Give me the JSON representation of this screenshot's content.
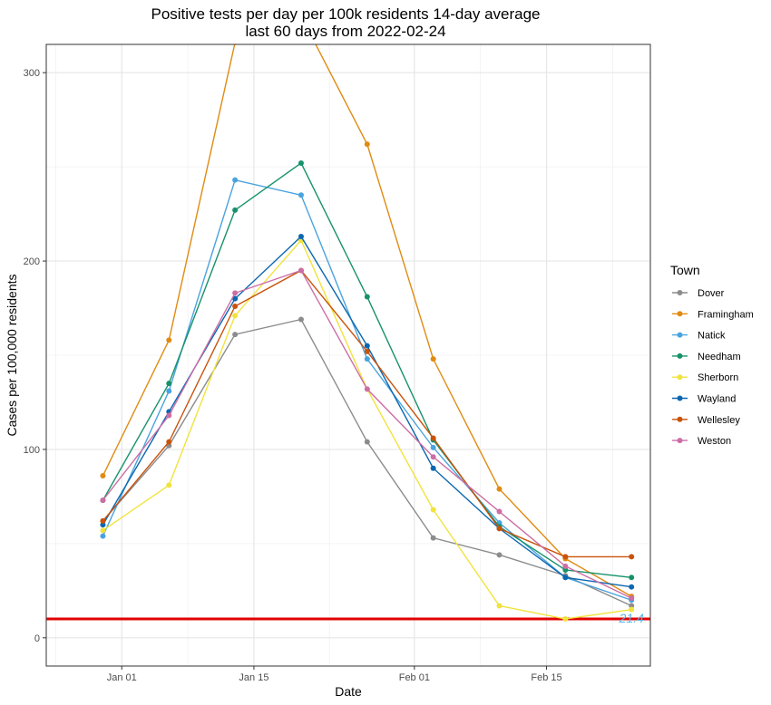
{
  "chart_data": {
    "type": "line",
    "title": "Positive tests per day per 100k residents 14-day average",
    "subtitle": "last 60 days from 2022-02-24",
    "xlabel": "Date",
    "ylabel": "Cases per 100,000 residents",
    "legend_title": "Town",
    "legend_position": "right",
    "grid": true,
    "x_tick_labels": [
      "Jan 01",
      "Jan 15",
      "Feb 01",
      "Feb 15"
    ],
    "x_tick_dates": [
      "2022-01-01",
      "2022-01-15",
      "2022-02-01",
      "2022-02-15"
    ],
    "x_range": [
      "2021-12-24",
      "2022-02-26"
    ],
    "y_ticks": [
      0,
      100,
      200,
      300
    ],
    "ylim": [
      -15,
      315
    ],
    "x": [
      "2021-12-30",
      "2022-01-06",
      "2022-01-13",
      "2022-01-20",
      "2022-01-27",
      "2022-02-03",
      "2022-02-10",
      "2022-02-17",
      "2022-02-24"
    ],
    "series": [
      {
        "name": "Dover",
        "color": "#8c8c8c",
        "values": [
          62,
          102,
          161,
          169,
          104,
          53,
          44,
          33,
          17
        ]
      },
      {
        "name": "Framingham",
        "color": "#e08b12",
        "values": [
          86,
          158,
          316,
          330,
          262,
          148,
          79,
          42,
          22
        ]
      },
      {
        "name": "Natick",
        "color": "#4aa3de",
        "values": [
          54,
          131,
          243,
          235,
          148,
          101,
          61,
          32,
          20
        ]
      },
      {
        "name": "Needham",
        "color": "#17926b",
        "values": [
          73,
          135,
          227,
          252,
          181,
          105,
          59,
          36,
          32
        ]
      },
      {
        "name": "Sherborn",
        "color": "#f1e33e",
        "values": [
          57,
          81,
          171,
          211,
          132,
          68,
          17,
          10,
          15
        ]
      },
      {
        "name": "Wayland",
        "color": "#0b67b0",
        "values": [
          60,
          120,
          180,
          213,
          155,
          90,
          58,
          32,
          27
        ]
      },
      {
        "name": "Wellesley",
        "color": "#c9530b",
        "values": [
          62,
          104,
          176,
          195,
          152,
          106,
          58,
          43,
          43
        ]
      },
      {
        "name": "Weston",
        "color": "#cc6ea5",
        "values": [
          73,
          118,
          183,
          195,
          132,
          96,
          67,
          38,
          21
        ]
      }
    ],
    "reference_line": {
      "y": 10,
      "color": "#e00000"
    },
    "annotation": {
      "text": "21.4",
      "x": "2022-02-24",
      "y": 10,
      "color": "#56b4e9"
    }
  }
}
